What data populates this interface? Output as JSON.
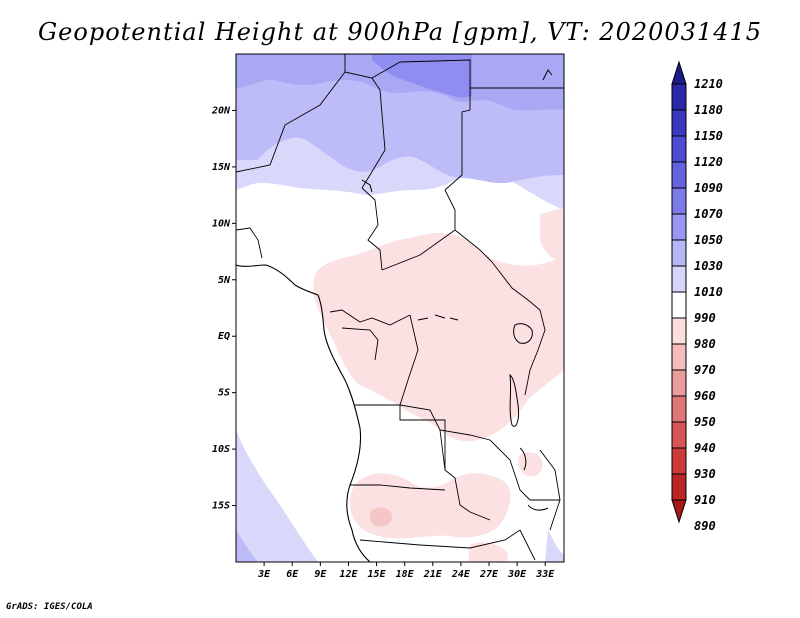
{
  "title": "Geopotential Height at 900hPa [gpm], VT: 2020031415",
  "credit": "GrADS: IGES/COLA",
  "map": {
    "lat_range": [
      -20,
      25
    ],
    "lon_range": [
      0,
      35
    ],
    "lat_ticks": [
      {
        "value": 20,
        "label": "20N"
      },
      {
        "value": 15,
        "label": "15N"
      },
      {
        "value": 10,
        "label": "10N"
      },
      {
        "value": 5,
        "label": "5N"
      },
      {
        "value": 0,
        "label": "EQ"
      },
      {
        "value": -5,
        "label": "5S"
      },
      {
        "value": -10,
        "label": "10S"
      },
      {
        "value": -15,
        "label": "15S"
      }
    ],
    "lon_ticks": [
      {
        "value": 3,
        "label": "3E"
      },
      {
        "value": 6,
        "label": "6E"
      },
      {
        "value": 9,
        "label": "9E"
      },
      {
        "value": 12,
        "label": "12E"
      },
      {
        "value": 15,
        "label": "15E"
      },
      {
        "value": 18,
        "label": "18E"
      },
      {
        "value": 21,
        "label": "21E"
      },
      {
        "value": 24,
        "label": "24E"
      },
      {
        "value": 27,
        "label": "27E"
      },
      {
        "value": 30,
        "label": "30E"
      },
      {
        "value": 33,
        "label": "33E"
      }
    ]
  },
  "colorbar": {
    "levels": [
      "1210",
      "1180",
      "1150",
      "1120",
      "1090",
      "1070",
      "1050",
      "1030",
      "1010",
      "990",
      "980",
      "970",
      "960",
      "950",
      "940",
      "930",
      "910",
      "890"
    ],
    "colors": [
      "#1c1a8c",
      "#2a28a8",
      "#3a38c0",
      "#4d4bd3",
      "#6462e0",
      "#7d7bea",
      "#9a98f2",
      "#b7b6f7",
      "#d6d6fb",
      "#ffffff",
      "#fbdfdf",
      "#f4bcbc",
      "#ea9b9b",
      "#e07676",
      "#d65656",
      "#cc3a3a",
      "#bb2525",
      "#a81818"
    ]
  },
  "colors": {
    "land_white": "#ffffff",
    "pink_light": "#fbe1e1",
    "pink_mid": "#f5c6c6",
    "blue_1": "#d8d8fb",
    "blue_2": "#bdbcf8",
    "blue_3": "#a9a8f4",
    "blue_4": "#8f8df0",
    "border": "#000000"
  }
}
